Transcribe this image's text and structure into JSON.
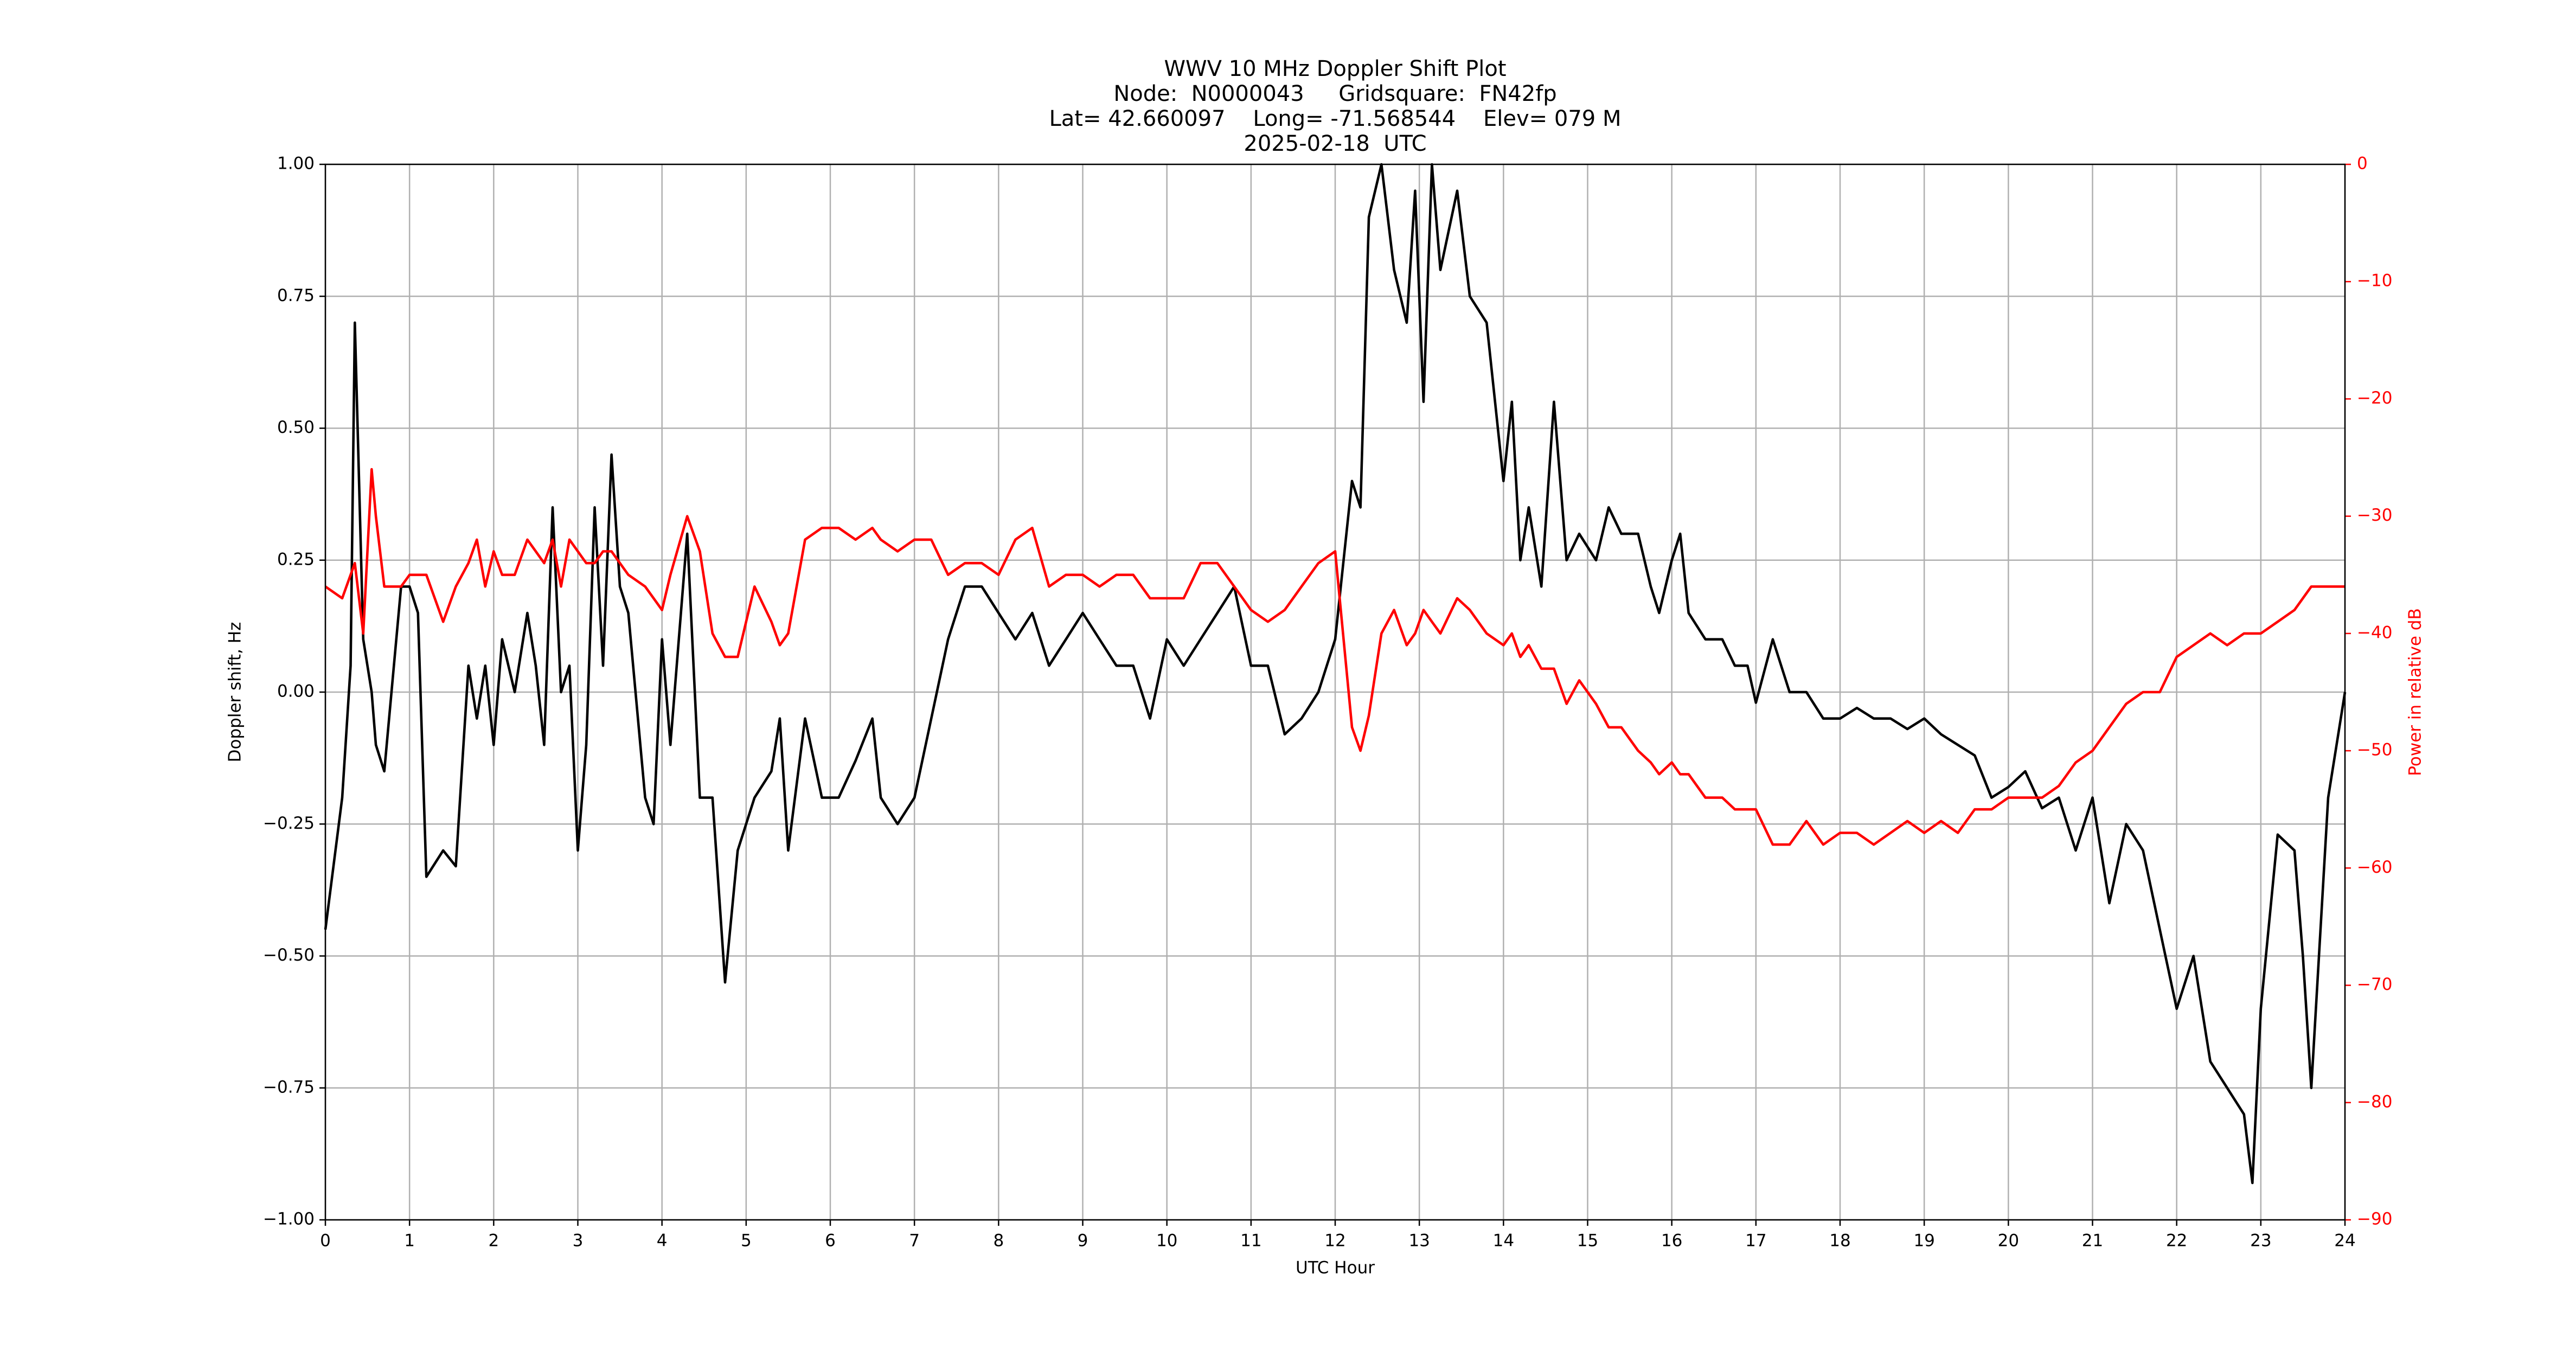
{
  "chart_data": {
    "type": "line",
    "title": "WWV 10 MHz Doppler Shift Plot",
    "subtitle": [
      "Node:  N0000043     Gridsquare:  FN42fp",
      "Lat= 42.660097    Long= -71.568544    Elev= 079 M",
      "2025-02-18  UTC"
    ],
    "x_label": "UTC Hour",
    "y_label": "Doppler shift, Hz",
    "y2_label": "Power in relative dB",
    "grid": true,
    "x": [
      0,
      0.2,
      0.3,
      0.35,
      0.45,
      0.55,
      0.6,
      0.7,
      0.9,
      1.0,
      1.1,
      1.2,
      1.4,
      1.55,
      1.7,
      1.8,
      1.9,
      2.0,
      2.1,
      2.25,
      2.4,
      2.5,
      2.6,
      2.7,
      2.8,
      2.9,
      3.0,
      3.1,
      3.2,
      3.3,
      3.4,
      3.5,
      3.6,
      3.8,
      3.9,
      4.0,
      4.1,
      4.3,
      4.45,
      4.6,
      4.75,
      4.9,
      5.1,
      5.3,
      5.4,
      5.5,
      5.7,
      5.9,
      6.1,
      6.3,
      6.5,
      6.6,
      6.8,
      7.0,
      7.2,
      7.4,
      7.6,
      7.8,
      8.0,
      8.2,
      8.4,
      8.6,
      8.8,
      9.0,
      9.2,
      9.4,
      9.6,
      9.8,
      10.0,
      10.2,
      10.4,
      10.6,
      10.8,
      11.0,
      11.2,
      11.4,
      11.6,
      11.8,
      12.0,
      12.2,
      12.3,
      12.4,
      12.55,
      12.7,
      12.85,
      12.95,
      13.05,
      13.15,
      13.25,
      13.45,
      13.6,
      13.8,
      14.0,
      14.1,
      14.2,
      14.3,
      14.45,
      14.6,
      14.75,
      14.9,
      15.1,
      15.25,
      15.4,
      15.6,
      15.75,
      15.85,
      16.0,
      16.1,
      16.2,
      16.4,
      16.6,
      16.75,
      16.9,
      17.0,
      17.2,
      17.4,
      17.6,
      17.8,
      18.0,
      18.2,
      18.4,
      18.6,
      18.8,
      19.0,
      19.2,
      19.4,
      19.6,
      19.8,
      20.0,
      20.2,
      20.4,
      20.6,
      20.8,
      21.0,
      21.2,
      21.4,
      21.6,
      21.8,
      22.0,
      22.2,
      22.4,
      22.6,
      22.8,
      22.9,
      23.0,
      23.2,
      23.4,
      23.5,
      23.6,
      23.8,
      23.9,
      24.0
    ],
    "series": [
      {
        "color": "#000000",
        "values": [
          -0.45,
          -0.2,
          0.05,
          0.7,
          0.1,
          0.0,
          -0.1,
          -0.15,
          0.2,
          0.2,
          0.15,
          -0.35,
          -0.3,
          -0.33,
          0.05,
          -0.05,
          0.05,
          -0.1,
          0.1,
          0.0,
          0.15,
          0.05,
          -0.1,
          0.35,
          0.0,
          0.05,
          -0.3,
          -0.1,
          0.35,
          0.05,
          0.45,
          0.2,
          0.15,
          -0.2,
          -0.25,
          0.1,
          -0.1,
          0.3,
          -0.2,
          -0.2,
          -0.55,
          -0.3,
          -0.2,
          -0.15,
          -0.05,
          -0.3,
          -0.05,
          -0.2,
          -0.2,
          -0.13,
          -0.05,
          -0.2,
          -0.25,
          -0.2,
          -0.05,
          0.1,
          0.2,
          0.2,
          0.15,
          0.1,
          0.15,
          0.05,
          0.1,
          0.15,
          0.1,
          0.05,
          0.05,
          -0.05,
          0.1,
          0.05,
          0.1,
          0.15,
          0.2,
          0.05,
          0.05,
          -0.08,
          -0.05,
          0.0,
          0.1,
          0.4,
          0.35,
          0.9,
          1.0,
          0.8,
          0.7,
          0.95,
          0.55,
          1.0,
          0.8,
          0.95,
          0.75,
          0.7,
          0.4,
          0.55,
          0.25,
          0.35,
          0.2,
          0.55,
          0.25,
          0.3,
          0.25,
          0.35,
          0.3,
          0.3,
          0.2,
          0.15,
          0.25,
          0.3,
          0.15,
          0.1,
          0.1,
          0.05,
          0.05,
          -0.02,
          0.1,
          0.0,
          0.0,
          -0.05,
          -0.05,
          -0.03,
          -0.05,
          -0.05,
          -0.07,
          -0.05,
          -0.08,
          -0.1,
          -0.12,
          -0.2,
          -0.18,
          -0.15,
          -0.22,
          -0.2,
          -0.3,
          -0.2,
          -0.4,
          -0.25,
          -0.3,
          -0.45,
          -0.6,
          -0.5,
          -0.7,
          -0.75,
          -0.8,
          -0.93,
          -0.6,
          -0.27,
          -0.3,
          -0.5,
          -0.75,
          -0.2,
          -0.1,
          0.0
        ]
      },
      {
        "color": "#ff0000",
        "axis": "y2",
        "values": [
          -36,
          -37,
          -35,
          -34,
          -40,
          -26,
          -30,
          -36,
          -36,
          -35,
          -35,
          -35,
          -39,
          -36,
          -34,
          -32,
          -36,
          -33,
          -35,
          -35,
          -32,
          -33,
          -34,
          -32,
          -36,
          -32,
          -33,
          -34,
          -34,
          -33,
          -33,
          -34,
          -35,
          -36,
          -37,
          -38,
          -35,
          -30,
          -33,
          -40,
          -42,
          -42,
          -36,
          -39,
          -41,
          -40,
          -32,
          -31,
          -31,
          -32,
          -31,
          -32,
          -33,
          -32,
          -32,
          -35,
          -34,
          -34,
          -35,
          -32,
          -31,
          -36,
          -35,
          -35,
          -36,
          -35,
          -35,
          -37,
          -37,
          -37,
          -34,
          -34,
          -36,
          -38,
          -39,
          -38,
          -36,
          -34,
          -33,
          -48,
          -50,
          -47,
          -40,
          -38,
          -41,
          -40,
          -38,
          -39,
          -40,
          -37,
          -38,
          -40,
          -41,
          -40,
          -42,
          -41,
          -43,
          -43,
          -46,
          -44,
          -46,
          -48,
          -48,
          -50,
          -51,
          -52,
          -51,
          -52,
          -52,
          -54,
          -54,
          -55,
          -55,
          -55,
          -58,
          -58,
          -56,
          -58,
          -57,
          -57,
          -58,
          -57,
          -56,
          -57,
          -56,
          -57,
          -55,
          -55,
          -54,
          -54,
          -54,
          -53,
          -51,
          -50,
          -48,
          -46,
          -45,
          -45,
          -42,
          -41,
          -40,
          -41,
          -40,
          -40,
          -40,
          -39,
          -38,
          -37,
          -36,
          -36,
          -36,
          -36
        ]
      }
    ],
    "xlim": [
      0,
      24
    ],
    "xticks": [
      0,
      1,
      2,
      3,
      4,
      5,
      6,
      7,
      8,
      9,
      10,
      11,
      12,
      13,
      14,
      15,
      16,
      17,
      18,
      19,
      20,
      21,
      22,
      23,
      24
    ],
    "ylim": [
      -1,
      1
    ],
    "yticks": [
      {
        "value": -1,
        "label": "−1.00"
      },
      {
        "value": -0.75,
        "label": "−0.75"
      },
      {
        "value": -0.5,
        "label": "−0.50"
      },
      {
        "value": -0.25,
        "label": "−0.25"
      },
      {
        "value": 0,
        "label": "0.00"
      },
      {
        "value": 0.25,
        "label": "0.25"
      },
      {
        "value": 0.5,
        "label": "0.50"
      },
      {
        "value": 0.75,
        "label": "0.75"
      },
      {
        "value": 1,
        "label": "1.00"
      }
    ],
    "y2lim": [
      -90,
      0
    ],
    "y2ticks": [
      {
        "value": -90,
        "label": "−90"
      },
      {
        "value": -80,
        "label": "−80"
      },
      {
        "value": -70,
        "label": "−70"
      },
      {
        "value": -60,
        "label": "−60"
      },
      {
        "value": -50,
        "label": "−50"
      },
      {
        "value": -40,
        "label": "−40"
      },
      {
        "value": -30,
        "label": "−30"
      },
      {
        "value": -20,
        "label": "−20"
      },
      {
        "value": -10,
        "label": "−10"
      },
      0
    ]
  }
}
